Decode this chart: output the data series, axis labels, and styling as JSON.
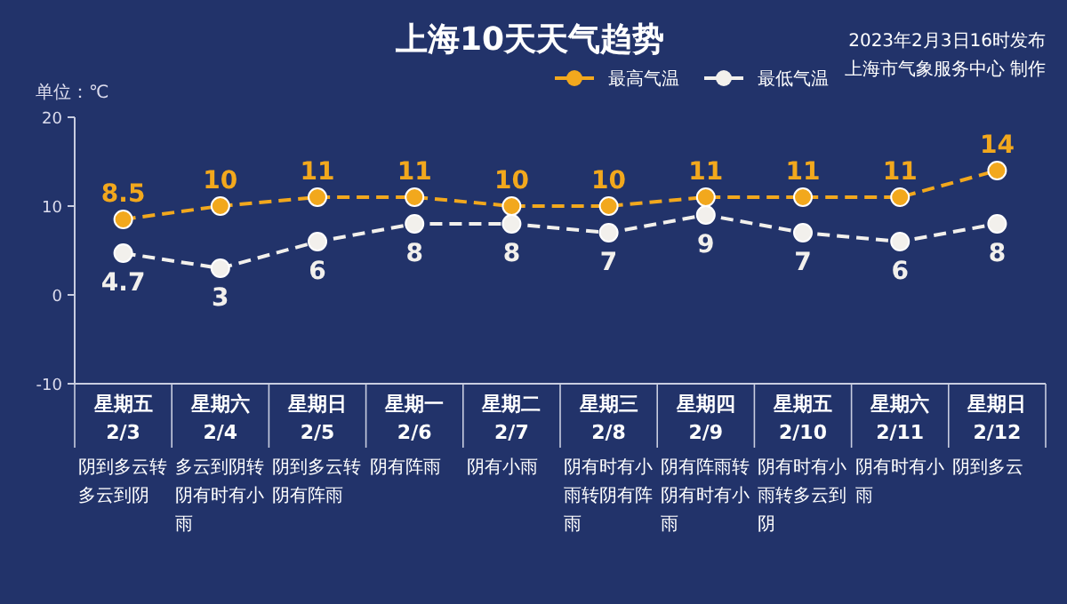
{
  "chart_data": {
    "type": "line",
    "title": "上海10天天气趋势",
    "ylabel": "单位：℃",
    "categories": [
      "星期五\n2/3",
      "星期六\n2/4",
      "星期日\n2/5",
      "星期一\n2/6",
      "星期二\n2/7",
      "星期三\n2/8",
      "星期四\n2/9",
      "星期五\n2/10",
      "星期六\n2/11",
      "星期日\n2/12"
    ],
    "series": [
      {
        "name": "最高气温",
        "color": "#f2a81d",
        "values": [
          8.5,
          10,
          11,
          11,
          10,
          10,
          11,
          11,
          11,
          14
        ],
        "value_labels": [
          "8.5",
          "10",
          "11",
          "11",
          "10",
          "10",
          "11",
          "11",
          "11",
          "14"
        ]
      },
      {
        "name": "最低气温",
        "color": "#f2f0ec",
        "values": [
          4.7,
          3,
          6,
          8,
          8,
          7,
          9,
          7,
          6,
          8
        ],
        "value_labels": [
          "4.7",
          "3",
          "6",
          "8",
          "8",
          "7",
          "9",
          "7",
          "6",
          "8"
        ]
      }
    ],
    "ylim": [
      -10,
      20
    ],
    "yticks": [
      -10,
      0,
      10,
      20
    ],
    "grid": false,
    "legend": "top right",
    "marker": "circle",
    "line_style": "dashed",
    "annotations": [
      "2023年2月3日16时发布",
      "上海市气象服务中心 制作",
      "阴到多云转多云到阴",
      "多云到阴转阴有时有小雨",
      "阴到多云转阴有阵雨",
      "阴有阵雨",
      "阴有小雨",
      "阴有时有小雨转阴有阵雨",
      "阴有阵雨转阴有时有小雨",
      "阴有时有小雨转多云到阴",
      "阴有时有小雨",
      "阴到多云"
    ]
  }
}
